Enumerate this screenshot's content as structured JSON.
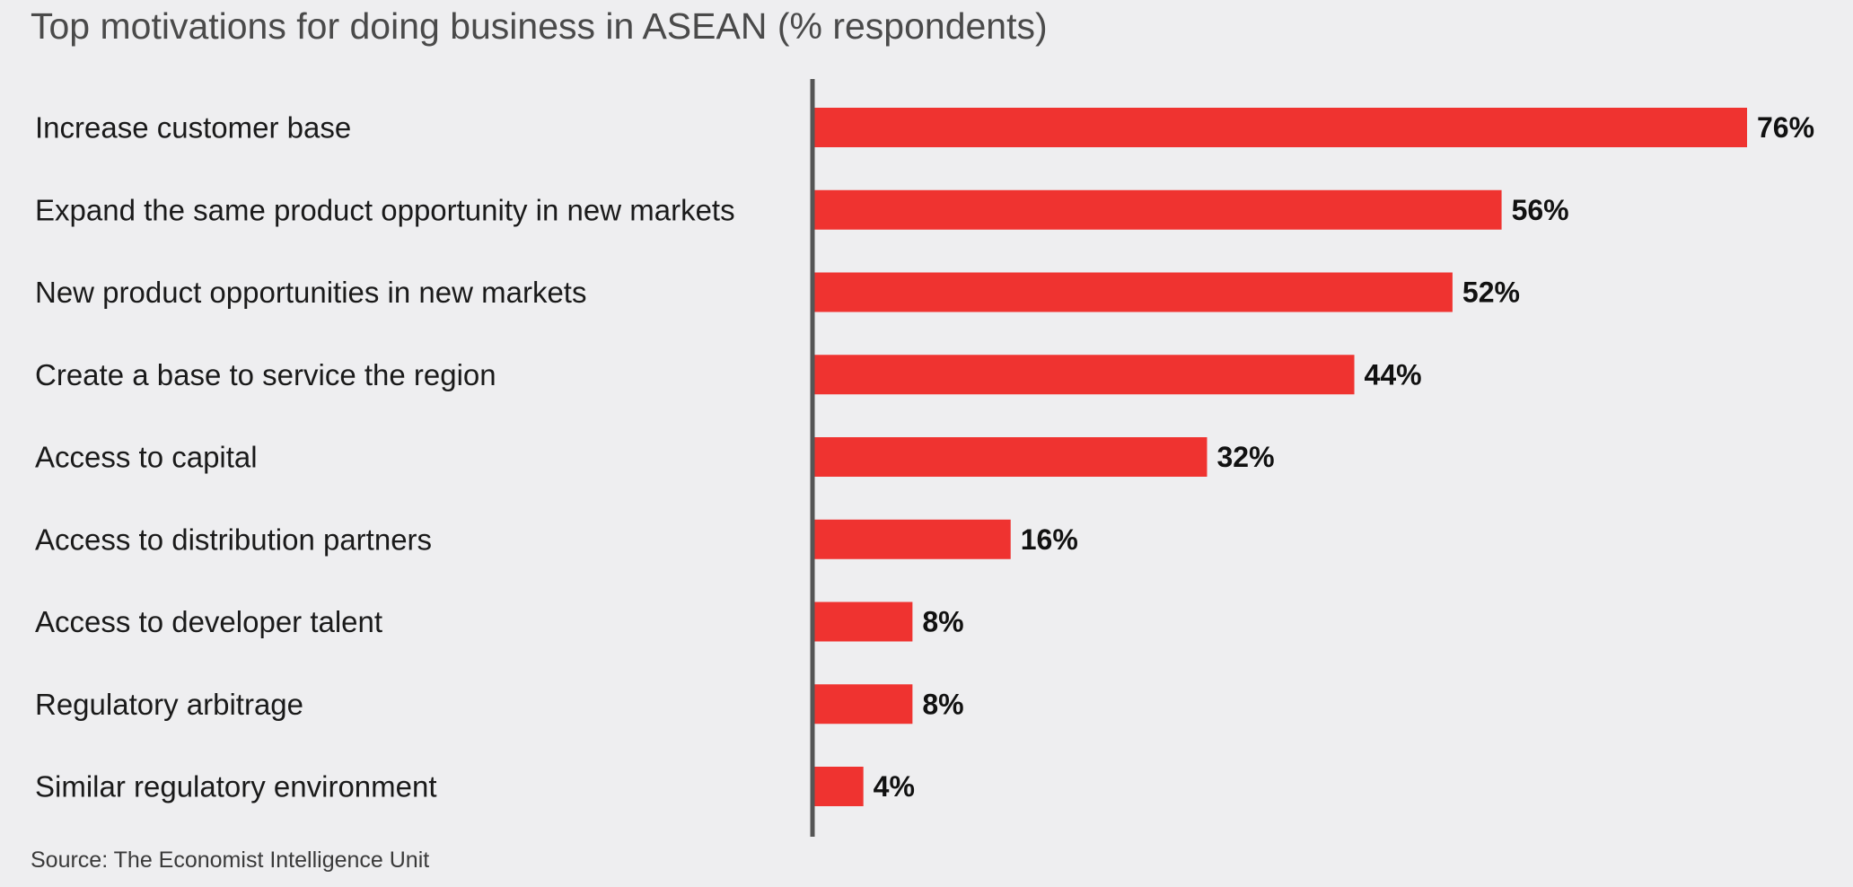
{
  "colors": {
    "background": "#eeeef0",
    "bar": "#ef3330",
    "axis": "#555555"
  },
  "chart_data": {
    "type": "bar",
    "orientation": "horizontal",
    "title": "Top motivations for doing business in ASEAN (% respondents)",
    "categories": [
      "Increase customer base",
      "Expand the same product opportunity in new markets",
      "New product opportunities in new markets",
      "Create a base to service the region",
      "Access to capital",
      "Access to distribution partners",
      "Access to developer talent",
      "Regulatory arbitrage",
      "Similar regulatory environment"
    ],
    "values": [
      76,
      56,
      52,
      44,
      32,
      16,
      8,
      8,
      4
    ],
    "value_labels": [
      "76%",
      "56%",
      "52%",
      "44%",
      "32%",
      "16%",
      "8%",
      "8%",
      "4%"
    ],
    "xlim": [
      0,
      76
    ],
    "grid": false,
    "legend": "none"
  },
  "source": "Source: The Economist Intelligence Unit"
}
